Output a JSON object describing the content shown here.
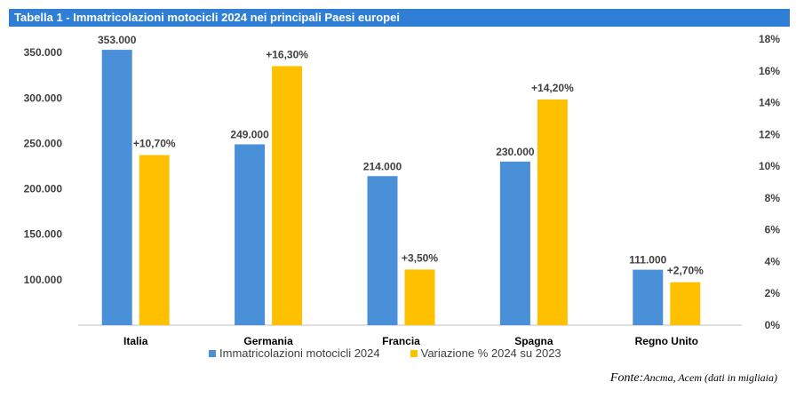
{
  "title": "Tabella 1 - Immatricolazioni motocicli 2024 nei principali Paesi europei",
  "source_label": "Fonte:",
  "source_text": "Ancma, Acem (dati in migliaia)",
  "colors": {
    "title_bg": "#2f7fd6",
    "series1": "#4a90d9",
    "series2": "#ffc000"
  },
  "chart_data": {
    "type": "bar",
    "categories": [
      "Italia",
      "Germania",
      "Francia",
      "Spagna",
      "Regno Unito"
    ],
    "series": [
      {
        "name": "Immatricolazioni motocicli 2024",
        "axis": "left",
        "values": [
          353000,
          249000,
          214000,
          230000,
          111000
        ],
        "labels": [
          "353.000",
          "249.000",
          "214.000",
          "230.000",
          "111.000"
        ]
      },
      {
        "name": "Variazione % 2024 su 2023",
        "axis": "right",
        "values": [
          10.7,
          16.3,
          3.5,
          14.2,
          2.7
        ],
        "labels": [
          "+10,70%",
          "+16,30%",
          "+3,50%",
          "+14,20%",
          "+2,70%"
        ]
      }
    ],
    "ylim_left": [
      50000,
      360000
    ],
    "yticks_left": [
      100000,
      150000,
      200000,
      250000,
      300000,
      350000
    ],
    "yticklabels_left": [
      "100.000",
      "150.000",
      "200.000",
      "250.000",
      "300.000",
      "350.000"
    ],
    "ylim_right": [
      0,
      18
    ],
    "yticks_right": [
      0,
      2,
      4,
      6,
      8,
      10,
      12,
      14,
      16,
      18
    ],
    "yticklabels_right": [
      "0%",
      "2%",
      "4%",
      "6%",
      "8%",
      "10%",
      "12%",
      "14%",
      "16%",
      "18%"
    ],
    "legend_position": "bottom",
    "grid": false
  }
}
